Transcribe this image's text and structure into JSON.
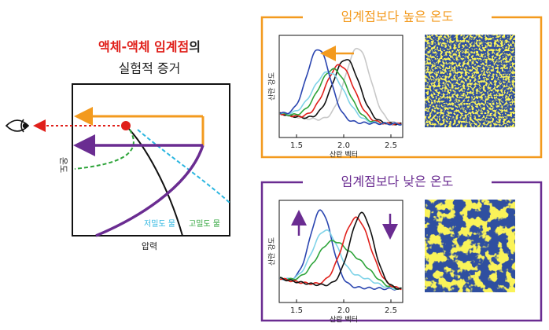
{
  "diagram": {
    "title_highlight": "액체-액체 임계점",
    "title_suffix": "의",
    "subtitle": "실험적 증거",
    "y_label": "온도",
    "x_label": "압력",
    "legend": [
      "저밀도 물",
      "고밀도 물"
    ]
  },
  "panels": [
    {
      "title": "임계점보다 높은 온도",
      "y_label": "산란 강도",
      "x_label": "산란 벡터",
      "xticks": [
        "1.5",
        "2.0",
        "2.5"
      ]
    },
    {
      "title": "임계점보다 낮은 온도",
      "y_label": "산란 강도",
      "x_label": "산란 벡터",
      "xticks": [
        "1.5",
        "2.0",
        "2.5"
      ]
    }
  ]
}
